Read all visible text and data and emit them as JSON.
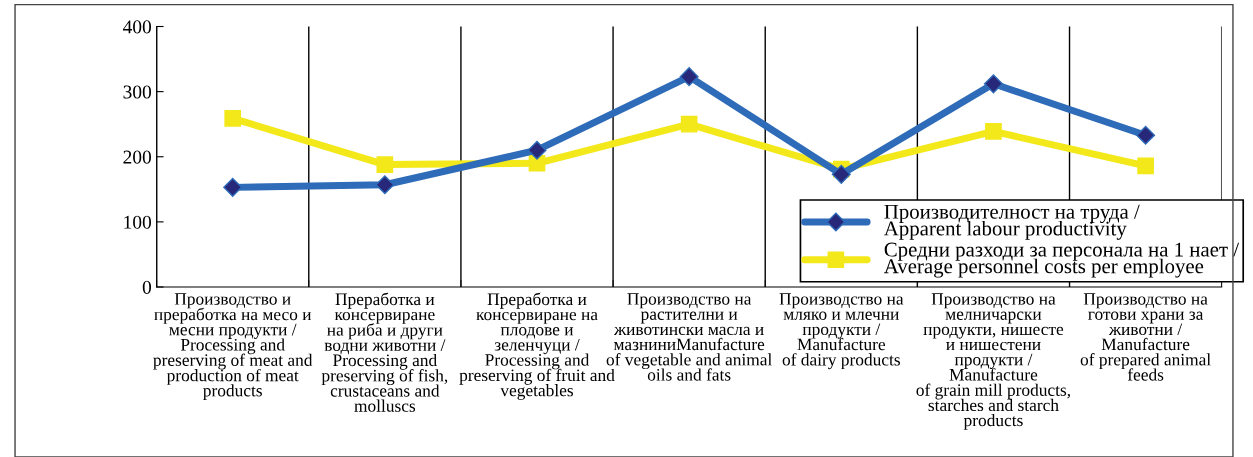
{
  "chart_data": {
    "type": "line",
    "categories": [
      "Производство и\nпреработка на месо и\nмесни продукти /\nProcessing and\npreserving of meat and\nproduction of meat\nproducts",
      "Преработка и\nконсервиране\nна риба и други\nводни животни /\nProcessing and\npreserving of fish,\ncrustaceans and\nmolluscs",
      "Преработка и\nконсервиране на\nплодове и\nзеленчуци /\nProcessing and\npreserving of fruit and\nvegetables",
      "Производство на\nрастителни и\nживотински масла и\nмазниниManufacture\nof vegetable and animal\noils and fats",
      "Производство на\nмляко и млечни\nпродукти /\nManufacture\nof dairy products",
      "Производство на\nмелничарски\nпродукти, нишесте\nи нишестени\nпродукти /\nManufacture\nof grain mill products,\nstarches and starch\nproducts",
      "Производство на\nготови храни за\nживотни /\nManufacture\nof prepared animal\nfeeds"
    ],
    "series": [
      {
        "name": "Производителност на труда /\nApparent labour productivity",
        "color": "#2e6bb8",
        "marker": "diamond",
        "values": [
          153,
          157,
          210,
          323,
          173,
          312,
          233
        ]
      },
      {
        "name": "Средни разходи за персонала на 1 нает /\nAverage personnel costs per employee",
        "color": "#f2e81a",
        "marker": "square",
        "values": [
          259,
          188,
          190,
          250,
          181,
          239,
          186
        ]
      }
    ],
    "ylim": [
      0,
      400
    ],
    "yticks": [
      0,
      100,
      200,
      300,
      400
    ],
    "grid": "x",
    "legend": "bottom right",
    "line_style": "solid"
  }
}
